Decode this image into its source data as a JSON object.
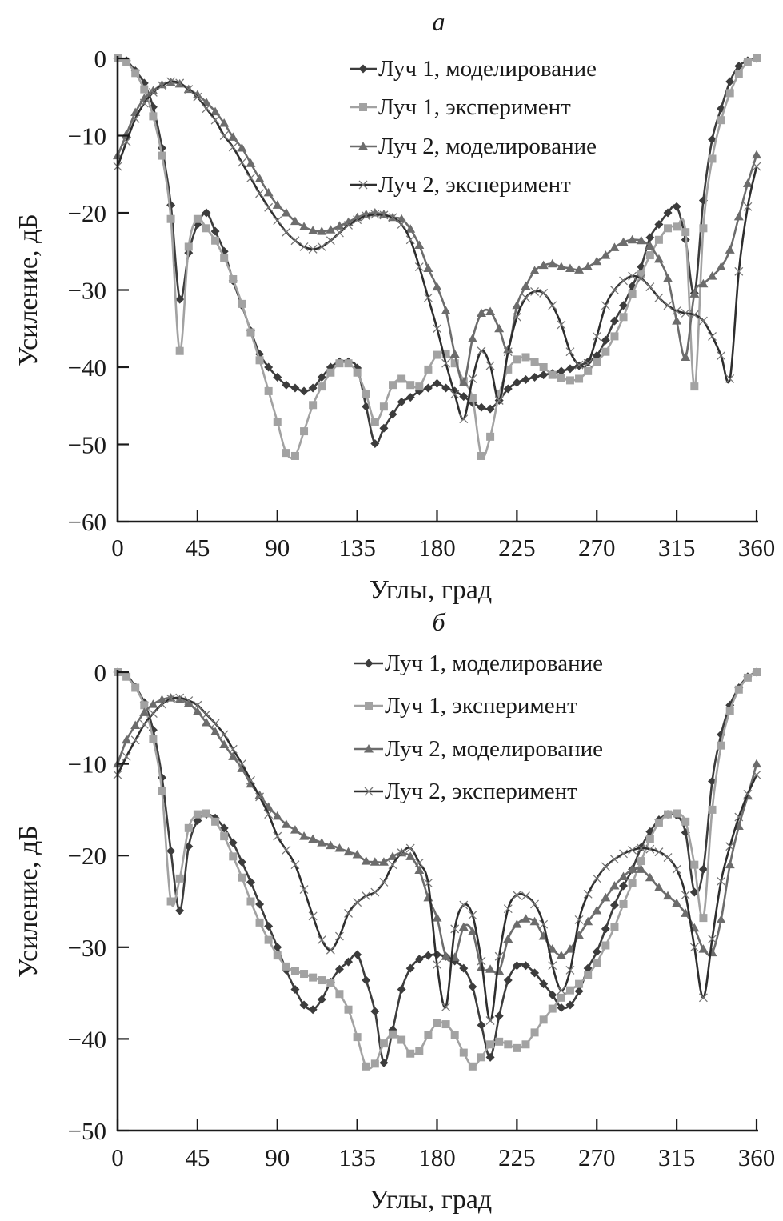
{
  "chart_data": [
    {
      "type": "line",
      "title": "а",
      "xlabel": "Углы, град",
      "ylabel": "Усиление, дБ",
      "xlim": [
        0,
        360
      ],
      "ylim": [
        -60,
        0
      ],
      "xticks": [
        "0",
        "45",
        "90",
        "135",
        "180",
        "225",
        "270",
        "315",
        "360"
      ],
      "xtick_values": [
        0,
        45,
        90,
        135,
        180,
        225,
        270,
        315,
        360
      ],
      "yticks": [
        "0",
        "−10",
        "−20",
        "−30",
        "−40",
        "−50",
        "−60"
      ],
      "ytick_values": [
        0,
        -10,
        -20,
        -30,
        -40,
        -50,
        -60
      ],
      "grid": false,
      "legend_position": "top-right",
      "x_step": 5,
      "series": [
        {
          "name": "Луч 1, моделирование",
          "marker": "diamond",
          "color": "#3c3c3c",
          "values": [
            0,
            -0.3,
            -1.6,
            -3.2,
            -6.3,
            -11.6,
            -19,
            -31.2,
            -25.2,
            -21.5,
            -20,
            -22.4,
            -25,
            -28.8,
            -32,
            -35.3,
            -38.3,
            -40,
            -41.3,
            -42.3,
            -42.7,
            -43.1,
            -42.7,
            -41.3,
            -40,
            -39.3,
            -39.3,
            -40.1,
            -45.1,
            -49.9,
            -47.9,
            -46.1,
            -44.5,
            -43.9,
            -43.1,
            -42.7,
            -42.1,
            -42.7,
            -43.1,
            -43.8,
            -44.6,
            -45.2,
            -45.4,
            -44.3,
            -42.8,
            -42,
            -41.6,
            -41.3,
            -41,
            -40.8,
            -40.5,
            -40.2,
            -39.8,
            -39.3,
            -38.5,
            -36.5,
            -34,
            -32,
            -29.5,
            -27,
            -23.2,
            -21.5,
            -20,
            -19.2,
            -23.5,
            -30.4,
            -18.4,
            -10.5,
            -6.5,
            -3,
            -1,
            -0.3,
            0
          ]
        },
        {
          "name": "Луч 1, эксперимент",
          "marker": "square",
          "color": "#a2a2a2",
          "values": [
            0,
            -0.5,
            -1.9,
            -4,
            -7.5,
            -12.6,
            -20.8,
            -37.9,
            -24.4,
            -20.8,
            -22,
            -23.6,
            -25.8,
            -28.6,
            -31.8,
            -35.5,
            -39.1,
            -43.1,
            -47.1,
            -51.1,
            -51.5,
            -48.3,
            -44.9,
            -42.5,
            -40.7,
            -39.5,
            -39.5,
            -40.7,
            -43.5,
            -47.1,
            -45.1,
            -42.3,
            -41.5,
            -42.3,
            -42.5,
            -40.3,
            -38.4,
            -38.3,
            -39.5,
            -41.8,
            -44,
            -51.5,
            -49,
            -43.5,
            -40.3,
            -39,
            -38.7,
            -39.3,
            -40,
            -41,
            -41.4,
            -41.7,
            -41.5,
            -40.5,
            -39.3,
            -38,
            -36,
            -33.5,
            -30.5,
            -28,
            -25.5,
            -23.5,
            -22,
            -21.8,
            -22.5,
            -42.5,
            -22,
            -13,
            -8,
            -4.5,
            -2,
            -0.5,
            0
          ]
        },
        {
          "name": "Луч 2, моделирование",
          "marker": "triangle",
          "color": "#6c6c6c",
          "values": [
            -12.6,
            -9.8,
            -7,
            -5.2,
            -4.2,
            -3.4,
            -3.1,
            -3.3,
            -4,
            -4.7,
            -5.7,
            -6.9,
            -8.4,
            -10.2,
            -11.6,
            -13.6,
            -15.6,
            -17.4,
            -19,
            -20,
            -21.1,
            -21.8,
            -22.3,
            -22.4,
            -22.2,
            -21.7,
            -21.2,
            -20.6,
            -20.2,
            -20,
            -20.2,
            -20.6,
            -20.8,
            -22.1,
            -24.2,
            -27.2,
            -29.6,
            -32.7,
            -38.3,
            -42,
            -36.3,
            -33,
            -32.8,
            -35,
            -37.7,
            -32,
            -29.5,
            -27.5,
            -26.8,
            -26.6,
            -27,
            -27.2,
            -27.4,
            -27,
            -26.3,
            -25.5,
            -24.5,
            -23.8,
            -23.5,
            -23.6,
            -24.3,
            -26,
            -28.5,
            -34,
            -38.7,
            -30.5,
            -29.2,
            -28.2,
            -27,
            -24.8,
            -20.5,
            -16.2,
            -12.5
          ]
        },
        {
          "name": "Луч 2, эксперимент",
          "marker": "cross",
          "color": "#2e2e2e",
          "values": [
            -14,
            -10.8,
            -7.8,
            -5.8,
            -4.4,
            -3.5,
            -3,
            -3.2,
            -4,
            -5,
            -6.5,
            -8,
            -10,
            -11.5,
            -13.5,
            -15.5,
            -17.5,
            -19.3,
            -21,
            -22.5,
            -23.6,
            -24.4,
            -24.7,
            -24.4,
            -23.6,
            -22.6,
            -21.6,
            -20.9,
            -20.4,
            -20.2,
            -20.3,
            -20.6,
            -21.5,
            -23.5,
            -27,
            -31,
            -35,
            -39.5,
            -43.5,
            -46.7,
            -41.5,
            -37.9,
            -39.8,
            -44.3,
            -38,
            -33.5,
            -31,
            -30.2,
            -30.4,
            -32,
            -34.5,
            -38,
            -39.7,
            -39.5,
            -36,
            -32,
            -30,
            -28.8,
            -28.2,
            -28.5,
            -29.6,
            -31,
            -32,
            -32.7,
            -33,
            -33.2,
            -34,
            -36,
            -38.5,
            -41.5,
            -27.6,
            -19.2,
            -14
          ]
        }
      ]
    },
    {
      "type": "line",
      "title": "б",
      "xlabel": "Углы, град",
      "ylabel": "Усиление, дБ",
      "xlim": [
        0,
        360
      ],
      "ylim": [
        -50,
        0
      ],
      "xticks": [
        "0",
        "45",
        "90",
        "135",
        "180",
        "225",
        "270",
        "315",
        "360"
      ],
      "xtick_values": [
        0,
        45,
        90,
        135,
        180,
        225,
        270,
        315,
        360
      ],
      "yticks": [
        "0",
        "−10",
        "−20",
        "−30",
        "−40",
        "−50"
      ],
      "ytick_values": [
        0,
        -10,
        -20,
        -30,
        -40,
        -50
      ],
      "grid": false,
      "legend_position": "top-right",
      "x_step": 5,
      "series": [
        {
          "name": "Луч 1, моделирование",
          "marker": "diamond",
          "color": "#3c3c3c",
          "values": [
            0,
            -0.3,
            -1.6,
            -3.3,
            -6.3,
            -11.5,
            -19.5,
            -26,
            -19,
            -16.2,
            -15.5,
            -15.9,
            -17,
            -18.6,
            -20.7,
            -22.9,
            -25.3,
            -27.7,
            -30,
            -32.5,
            -34.6,
            -36.3,
            -36.8,
            -35.7,
            -33.8,
            -32.4,
            -31.6,
            -30.8,
            -33.6,
            -37,
            -42.6,
            -39,
            -34.6,
            -32.3,
            -31.3,
            -30.9,
            -30.8,
            -31,
            -31.5,
            -32.3,
            -34.3,
            -38.5,
            -42,
            -37.5,
            -33.6,
            -32,
            -32,
            -32.8,
            -34,
            -35.2,
            -36.6,
            -36.3,
            -34.8,
            -32.3,
            -30.5,
            -28,
            -25.4,
            -23.3,
            -21.5,
            -19.1,
            -17.4,
            -16.1,
            -15.5,
            -15.6,
            -17.5,
            -24,
            -21.5,
            -11.9,
            -6.8,
            -3.6,
            -1.7,
            -0.5,
            0
          ]
        },
        {
          "name": "Луч 1, эксперимент",
          "marker": "square",
          "color": "#a2a2a2",
          "values": [
            0,
            -0.5,
            -1.7,
            -3.6,
            -7.3,
            -13,
            -25,
            -22.5,
            -17,
            -15.5,
            -15.4,
            -16.3,
            -17.9,
            -20.1,
            -22.4,
            -25,
            -27.3,
            -29.2,
            -30.9,
            -32.1,
            -32.6,
            -32.9,
            -33.3,
            -33.6,
            -33.9,
            -35.1,
            -36.8,
            -39.8,
            -43,
            -42.7,
            -40.5,
            -39.5,
            -40.1,
            -41.6,
            -41.3,
            -39.6,
            -38.3,
            -38.4,
            -39.6,
            -41.5,
            -43,
            -42,
            -40.6,
            -40.3,
            -40.6,
            -41,
            -40.6,
            -39.3,
            -37.9,
            -36.7,
            -35.5,
            -34.7,
            -34,
            -33,
            -31.7,
            -29.8,
            -27.8,
            -25.3,
            -23,
            -20.6,
            -18.2,
            -16.4,
            -15.5,
            -15.4,
            -16.3,
            -21,
            -26.8,
            -15,
            -8,
            -4.2,
            -1.9,
            -0.6,
            0
          ]
        },
        {
          "name": "Луч 2, моделирование",
          "marker": "triangle",
          "color": "#6c6c6c",
          "values": [
            -10,
            -7.4,
            -5.8,
            -4.4,
            -3.5,
            -3,
            -2.8,
            -3,
            -3.4,
            -4.3,
            -5.5,
            -6.5,
            -7.9,
            -9.2,
            -10.5,
            -12.2,
            -13.4,
            -14.7,
            -15.7,
            -16.6,
            -17.2,
            -17.9,
            -18.2,
            -18.6,
            -18.9,
            -19.2,
            -19.6,
            -19.9,
            -20.6,
            -20.7,
            -20.7,
            -20.1,
            -19.7,
            -20.1,
            -21.6,
            -24.6,
            -26.8,
            -31,
            -31.1,
            -27.8,
            -28.3,
            -32.2,
            -32.4,
            -32.6,
            -29.1,
            -27.5,
            -26.9,
            -27.2,
            -28.8,
            -30.2,
            -30.9,
            -30.2,
            -28.7,
            -27.2,
            -26,
            -24.6,
            -23.3,
            -22.3,
            -21.5,
            -21.5,
            -22.4,
            -23.5,
            -24.4,
            -25.2,
            -26.3,
            -27.9,
            -30.2,
            -30.6,
            -27,
            -21,
            -16.8,
            -13.5,
            -10
          ]
        },
        {
          "name": "Луч 2, эксперимент",
          "marker": "cross",
          "color": "#2e2e2e",
          "values": [
            -11.2,
            -9.2,
            -7.4,
            -5.7,
            -4.5,
            -3.5,
            -2.9,
            -2.8,
            -3.1,
            -3.6,
            -4.6,
            -5.6,
            -6.8,
            -8.4,
            -10,
            -11.8,
            -13.6,
            -15.5,
            -17.9,
            -19.4,
            -21,
            -23.7,
            -26.6,
            -29.2,
            -30.3,
            -28.8,
            -26.3,
            -25.1,
            -24.4,
            -24,
            -22.9,
            -21,
            -19.7,
            -19.2,
            -20.8,
            -23,
            -31.9,
            -36.5,
            -28,
            -25.4,
            -26.5,
            -31.5,
            -38,
            -31,
            -25.8,
            -24.3,
            -24.4,
            -25.3,
            -27.5,
            -32,
            -34.7,
            -32.5,
            -27,
            -24.2,
            -22.5,
            -21.2,
            -20.4,
            -19.8,
            -19.4,
            -19.2,
            -19.3,
            -19.6,
            -20.2,
            -21.5,
            -24.3,
            -30,
            -35.5,
            -29.1,
            -22.8,
            -19,
            -15.8,
            -13.3,
            -11.2
          ]
        }
      ]
    }
  ]
}
